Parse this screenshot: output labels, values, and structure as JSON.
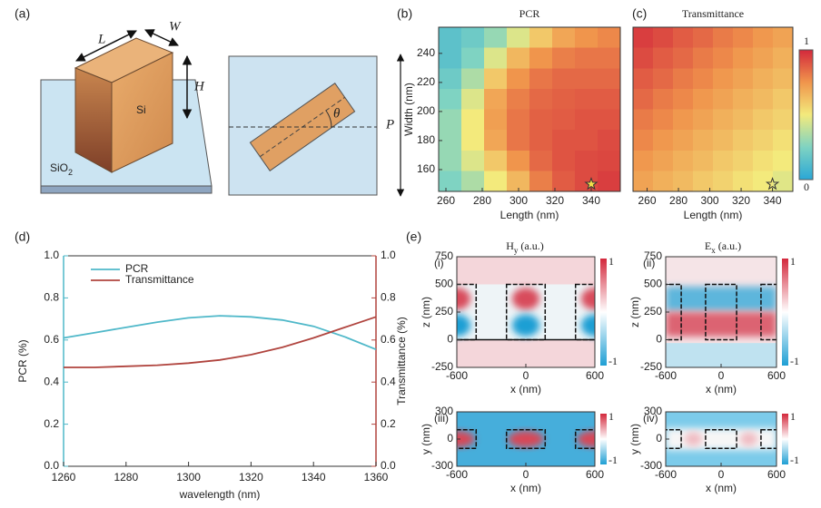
{
  "panel_a": {
    "label": "(a)",
    "L": "L",
    "W": "W",
    "H": "H",
    "Si": "Si",
    "SiO": "SiO",
    "sub": "2",
    "theta": "θ",
    "P": "P"
  },
  "heatmaps": [
    {
      "label": "(b)",
      "title": "PCR",
      "xlabel": "Length (nm)",
      "ylabel": "Width (nm)",
      "xlim": [
        256,
        356
      ],
      "ylim": [
        145,
        258
      ],
      "xticks": [
        260,
        280,
        300,
        320,
        340
      ],
      "yticks": [
        160,
        180,
        200,
        220,
        240
      ],
      "values": [
        [
          0.15,
          0.2,
          0.3,
          0.45,
          0.6,
          0.7,
          0.75,
          0.78
        ],
        [
          0.15,
          0.25,
          0.45,
          0.65,
          0.75,
          0.8,
          0.82,
          0.82
        ],
        [
          0.2,
          0.35,
          0.6,
          0.75,
          0.82,
          0.85,
          0.85,
          0.85
        ],
        [
          0.25,
          0.45,
          0.7,
          0.8,
          0.85,
          0.87,
          0.88,
          0.88
        ],
        [
          0.3,
          0.5,
          0.72,
          0.82,
          0.87,
          0.88,
          0.9,
          0.9
        ],
        [
          0.3,
          0.5,
          0.7,
          0.82,
          0.87,
          0.9,
          0.9,
          0.92
        ],
        [
          0.3,
          0.45,
          0.6,
          0.75,
          0.85,
          0.9,
          0.92,
          0.93
        ],
        [
          0.25,
          0.35,
          0.5,
          0.65,
          0.8,
          0.88,
          0.92,
          0.95
        ]
      ],
      "marker": {
        "x": 340,
        "y": 150
      }
    },
    {
      "label": "(c)",
      "title": "Transmittance",
      "xlabel": "Length (nm)",
      "xlim": [
        251,
        353
      ],
      "ylim": [
        145,
        258
      ],
      "xticks": [
        260,
        280,
        300,
        320,
        340
      ],
      "values": [
        [
          0.95,
          0.92,
          0.88,
          0.85,
          0.81,
          0.78,
          0.74,
          0.71
        ],
        [
          0.92,
          0.88,
          0.85,
          0.81,
          0.78,
          0.74,
          0.71,
          0.67
        ],
        [
          0.88,
          0.85,
          0.81,
          0.78,
          0.74,
          0.71,
          0.67,
          0.64
        ],
        [
          0.85,
          0.81,
          0.78,
          0.74,
          0.71,
          0.67,
          0.64,
          0.6
        ],
        [
          0.81,
          0.78,
          0.74,
          0.71,
          0.67,
          0.64,
          0.6,
          0.57
        ],
        [
          0.78,
          0.74,
          0.71,
          0.67,
          0.64,
          0.6,
          0.57,
          0.53
        ],
        [
          0.74,
          0.71,
          0.67,
          0.64,
          0.6,
          0.57,
          0.53,
          0.5
        ],
        [
          0.71,
          0.67,
          0.64,
          0.6,
          0.57,
          0.53,
          0.5,
          0.46
        ]
      ],
      "marker": {
        "x": 340,
        "y": 150
      }
    }
  ],
  "colorbar": {
    "colors": [
      "#2aa7d6",
      "#7fd3c2",
      "#f3ea7c",
      "#f0954c",
      "#d3283c"
    ],
    "clim": [
      0,
      1
    ],
    "ticks": [
      1,
      0
    ]
  },
  "chart_data": {
    "type": "line",
    "label": "(d)",
    "xlabel": "wavelength (nm)",
    "ylabel": "PCR (%)",
    "y2label": "Transmittance (%)",
    "x": [
      1260,
      1270,
      1280,
      1290,
      1300,
      1310,
      1320,
      1330,
      1340,
      1350,
      1360
    ],
    "xlim": [
      1260,
      1360
    ],
    "xticks": [
      1260,
      1280,
      1300,
      1320,
      1340,
      1360
    ],
    "ylim": [
      0,
      1
    ],
    "yticks": [
      {
        "value": 0,
        "label": "0.0"
      },
      {
        "value": 0.2,
        "label": "0.2"
      },
      {
        "value": 0.4,
        "label": "0.4"
      },
      {
        "value": 0.6,
        "label": "0.6"
      },
      {
        "value": 0.8,
        "label": "0.8"
      },
      {
        "value": 1,
        "label": "1.0"
      }
    ],
    "y2lim": [
      0,
      1
    ],
    "y2ticks": [
      {
        "value": 0,
        "label": "0.0"
      },
      {
        "value": 0.2,
        "label": "0.2"
      },
      {
        "value": 0.4,
        "label": "0.4"
      },
      {
        "value": 0.6,
        "label": "0.6"
      },
      {
        "value": 0.8,
        "label": "0.8"
      },
      {
        "value": 1,
        "label": "1.0"
      }
    ],
    "legend": "upper left",
    "series": [
      {
        "name": "PCR",
        "color": "#4fb8c9",
        "values": [
          0.61,
          0.635,
          0.66,
          0.685,
          0.705,
          0.715,
          0.71,
          0.695,
          0.665,
          0.615,
          0.555
        ]
      },
      {
        "name": "Transmittance",
        "color": "#b0443e",
        "axis": "y2",
        "values": [
          0.47,
          0.47,
          0.475,
          0.48,
          0.49,
          0.505,
          0.53,
          0.565,
          0.61,
          0.66,
          0.71
        ]
      }
    ]
  },
  "panel_e": {
    "label": "(e)",
    "titles": [
      {
        "main": "H",
        "sub": "y",
        "unit": "(a.u.)"
      },
      {
        "main": "E",
        "sub": "x",
        "unit": "(a.u.)"
      }
    ],
    "maps": [
      {
        "label": "(i)",
        "xlabel": "x (nm)",
        "ylabel": "z (nm)",
        "xlim": [
          -600,
          600
        ],
        "ylim": [
          -250,
          750
        ],
        "xticks": [
          -600,
          0,
          600
        ],
        "yticks": [
          750,
          500,
          250,
          0,
          -250
        ],
        "cbar": [
          1,
          -1
        ]
      },
      {
        "label": "(ii)",
        "xlabel": "x (nm)",
        "ylabel": "z (nm)",
        "xlim": [
          -600,
          600
        ],
        "ylim": [
          -250,
          750
        ],
        "xticks": [
          -600,
          0,
          600
        ],
        "yticks": [
          750,
          500,
          250,
          0,
          -250
        ],
        "cbar": [
          1,
          -1
        ]
      },
      {
        "label": "(iii)",
        "xlabel": "x (nm)",
        "ylabel": "y (nm)",
        "xlim": [
          -600,
          600
        ],
        "ylim": [
          -300,
          300
        ],
        "xticks": [
          -600,
          0,
          600
        ],
        "yticks": [
          300,
          0,
          -300
        ],
        "cbar": [
          1,
          -1
        ]
      },
      {
        "label": "(iv)",
        "xlabel": "x (nm)",
        "ylabel": "y (nm)",
        "xlim": [
          -600,
          600
        ],
        "ylim": [
          -300,
          300
        ],
        "xticks": [
          -600,
          0,
          600
        ],
        "yticks": [
          300,
          0,
          -300
        ],
        "cbar": [
          1,
          -1
        ]
      }
    ]
  }
}
